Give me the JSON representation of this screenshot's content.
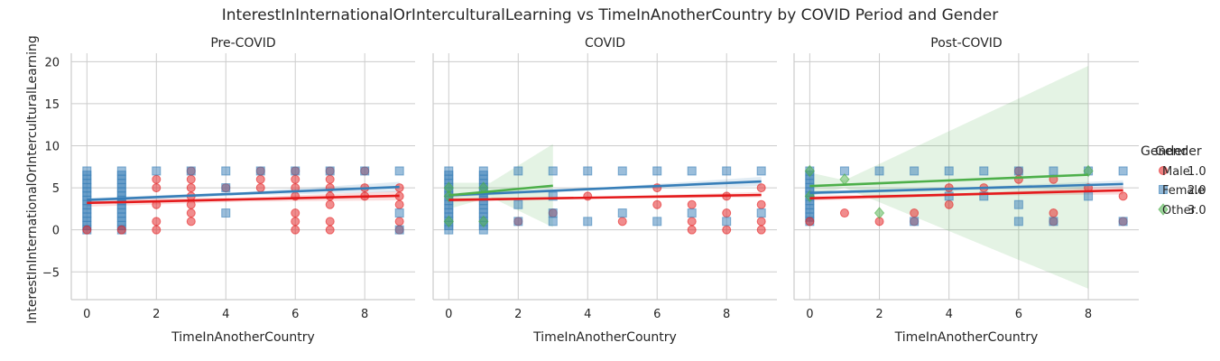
{
  "chart_data": {
    "type": "scatter",
    "title": "InterestInInternationalOrInterculturalLearning vs TimeInAnotherCountry by COVID Period and Gender",
    "xlabel": "TimeInAnotherCountry",
    "ylabel": "InterestInInternationalOrInterculturalLearning",
    "xlim": [
      -0.45,
      9.45
    ],
    "ylim": [
      -8.3,
      21
    ],
    "xticks": [
      0,
      2,
      4,
      6,
      8
    ],
    "yticks": [
      -5,
      0,
      5,
      10,
      15,
      20
    ],
    "grid": true,
    "legend": {
      "placement": "right",
      "titles": [
        "Gender",
        "Gender"
      ],
      "entries": [
        {
          "marker": "circle",
          "color": "#e41a1c",
          "labels": [
            "Male",
            "1.0"
          ]
        },
        {
          "marker": "square",
          "color": "#377eb8",
          "labels": [
            "Female",
            "2.0"
          ]
        },
        {
          "marker": "diamond",
          "color": "#4daf4a",
          "labels": [
            "Other",
            "3.0"
          ]
        }
      ]
    },
    "facets": [
      {
        "title": "Pre-COVID",
        "scatter": {
          "red_x": [
            0,
            1,
            2,
            2,
            2,
            2,
            2,
            3,
            3,
            3,
            3,
            3,
            3,
            3,
            4,
            5,
            5,
            5,
            6,
            6,
            6,
            6,
            6,
            6,
            6,
            7,
            7,
            7,
            7,
            7,
            7,
            7,
            8,
            8,
            8,
            9,
            9,
            9,
            9,
            9
          ],
          "red_y": [
            0,
            0,
            0,
            1,
            3,
            5,
            6,
            1,
            2,
            3,
            4,
            5,
            6,
            7,
            5,
            5,
            6,
            7,
            0,
            1,
            2,
            4,
            5,
            6,
            7,
            0,
            1,
            3,
            4,
            5,
            6,
            7,
            4,
            5,
            7,
            0,
            1,
            3,
            4,
            5
          ],
          "blue_x": [
            2,
            3,
            4,
            4,
            4,
            5,
            6,
            7,
            8,
            9,
            9,
            9
          ],
          "blue_y": [
            7,
            7,
            7,
            5,
            2,
            7,
            7,
            7,
            7,
            7,
            2,
            0
          ],
          "blue_col_x": [
            0,
            1
          ],
          "blue_col_y": [
            0,
            7
          ]
        },
        "regression": [
          {
            "color": "#e41a1c",
            "x": [
              0,
              9
            ],
            "y": [
              3.2,
              4.05
            ],
            "ci": [
              [
                0,
                2.75,
                3.65
              ],
              [
                4.5,
                3.35,
                3.85
              ],
              [
                9,
                3.5,
                4.6
              ]
            ]
          },
          {
            "color": "#377eb8",
            "x": [
              0,
              9
            ],
            "y": [
              3.55,
              5.1
            ],
            "ci": [
              [
                0,
                3.3,
                3.8
              ],
              [
                4.5,
                4.1,
                4.5
              ],
              [
                9,
                4.5,
                5.7
              ]
            ]
          }
        ]
      },
      {
        "title": "COVID",
        "scatter": {
          "red_x": [
            2,
            3,
            4,
            5,
            6,
            6,
            7,
            7,
            7,
            8,
            8,
            8,
            9,
            9,
            9,
            9
          ],
          "red_y": [
            1,
            2,
            4,
            1,
            3,
            5,
            0,
            1,
            3,
            0,
            2,
            4,
            0,
            1,
            3,
            5
          ],
          "blue_x": [
            2,
            2,
            2,
            3,
            3,
            3,
            3,
            4,
            4,
            5,
            5,
            6,
            6,
            7,
            7,
            8,
            8,
            9,
            9
          ],
          "blue_y": [
            7,
            3,
            1,
            7,
            4,
            1,
            2,
            7,
            1,
            7,
            2,
            7,
            1,
            7,
            2,
            7,
            1,
            7,
            2
          ],
          "blue_col_x": [
            0,
            1
          ],
          "blue_col_y": [
            0,
            7
          ],
          "green_x": [
            0,
            0,
            0,
            1,
            1
          ],
          "green_y": [
            1,
            5,
            4,
            1,
            5
          ]
        },
        "regression": [
          {
            "color": "#e41a1c",
            "x": [
              0,
              9
            ],
            "y": [
              3.55,
              4.15
            ],
            "ci": [
              [
                0,
                3.3,
                3.8
              ],
              [
                4.5,
                3.75,
                3.95
              ],
              [
                9,
                3.85,
                4.5
              ]
            ]
          },
          {
            "color": "#377eb8",
            "x": [
              0,
              9
            ],
            "y": [
              4.1,
              5.75
            ],
            "ci": [
              [
                0,
                3.85,
                4.35
              ],
              [
                4.5,
                4.75,
                5.05
              ],
              [
                9,
                5.2,
                6.3
              ]
            ]
          },
          {
            "color": "#4daf4a",
            "x": [
              0,
              3
            ],
            "y": [
              4.1,
              5.25
            ],
            "ci": [
              [
                0,
                2.5,
                5.6
              ],
              [
                1.2,
                3.9,
                5.6
              ],
              [
                3,
                0.3,
                10.2
              ]
            ]
          }
        ]
      },
      {
        "title": "Post-COVID",
        "scatter": {
          "red_x": [
            0,
            1,
            2,
            3,
            3,
            4,
            4,
            5,
            6,
            6,
            7,
            7,
            7,
            8,
            9,
            9
          ],
          "red_y": [
            1,
            2,
            1,
            1,
            2,
            3,
            5,
            5,
            6,
            7,
            1,
            2,
            6,
            5,
            1,
            4
          ],
          "blue_x": [
            1,
            2,
            3,
            3,
            4,
            4,
            5,
            5,
            6,
            6,
            6,
            7,
            7,
            8,
            8,
            9,
            9
          ],
          "blue_y": [
            7,
            7,
            7,
            1,
            7,
            4,
            7,
            4,
            7,
            3,
            1,
            7,
            1,
            7,
            4,
            7,
            1
          ],
          "blue_col_x": [
            0
          ],
          "blue_col_y": [
            1,
            7
          ],
          "green_x": [
            0,
            0,
            1,
            2,
            8
          ],
          "green_y": [
            7,
            4,
            6,
            2,
            7
          ]
        },
        "regression": [
          {
            "color": "#e41a1c",
            "x": [
              0,
              9
            ],
            "y": [
              3.75,
              4.7
            ],
            "ci": [
              [
                0,
                3.45,
                4.05
              ],
              [
                4.5,
                4.05,
                4.35
              ],
              [
                9,
                4.2,
                5.2
              ]
            ]
          },
          {
            "color": "#377eb8",
            "x": [
              0,
              9
            ],
            "y": [
              4.4,
              5.45
            ],
            "ci": [
              [
                0,
                4.15,
                4.65
              ],
              [
                4.5,
                4.75,
                5.05
              ],
              [
                9,
                5.0,
                5.9
              ]
            ]
          },
          {
            "color": "#4daf4a",
            "x": [
              0,
              8
            ],
            "y": [
              5.2,
              6.55
            ],
            "ci": [
              [
                0,
                4.0,
                6.8
              ],
              [
                1.0,
                5.0,
                5.9
              ],
              [
                8,
                -7.0,
                19.5
              ]
            ]
          }
        ]
      }
    ]
  }
}
